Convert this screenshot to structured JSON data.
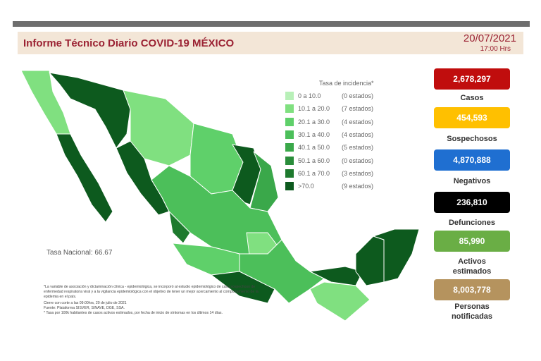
{
  "header": {
    "title": "Informe Técnico Diario COVID-19 MÉXICO",
    "date": "20/07/2021",
    "time": "17:00 Hrs"
  },
  "legend": {
    "title": "Tasa de incidencia*",
    "rows": [
      {
        "range": "0  a 10.0",
        "count": "(0 estados)"
      },
      {
        "range": "10.1 a  20.0",
        "count": "(7 estados)"
      },
      {
        "range": "20.1 a  30.0",
        "count": "(4 estados)"
      },
      {
        "range": "30.1 a  40.0",
        "count": "(4 estados)"
      },
      {
        "range": "40.1 a  50.0",
        "count": "(5 estados)"
      },
      {
        "range": "50.1 a  60.0",
        "count": "(0 estados)"
      },
      {
        "range": "60.1 a  70.0",
        "count": "(3 estados)"
      },
      {
        "range": ">70.0",
        "count": "(9 estados)"
      }
    ]
  },
  "national_rate": "Tasa Nacional: 66.67",
  "footnotes": [
    "*La variable de asociación y dictaminación clínica - epidemiológica, se incorporó al estudio epidemiológico de caso sospechoso de enfermedad respiratoria viral y a la vigilancia epidemiológica con el objetivo de tener un mejor acercamiento al comportamiento de la epidemia en el país.",
    "Cierre con corte a las 09:00hrs, 20 de julio de 2021",
    "Fuente: Plataforma SISVER, SINAVE, DGE, SSA.",
    "* Tasa por 100k habitantes de casos activos estimados, por fecha de inicio de síntomas en los últimos 14 días."
  ],
  "stats": [
    {
      "value": "2,678,297",
      "label": "Casos"
    },
    {
      "value": "454,593",
      "label": "Sospechosos"
    },
    {
      "value": "4,870,888",
      "label": "Negativos"
    },
    {
      "value": "236,810",
      "label": "Defunciones"
    },
    {
      "value": "85,990",
      "label": "Activos estimados"
    },
    {
      "value": "8,003,778",
      "label": "Personas notificadas"
    }
  ]
}
